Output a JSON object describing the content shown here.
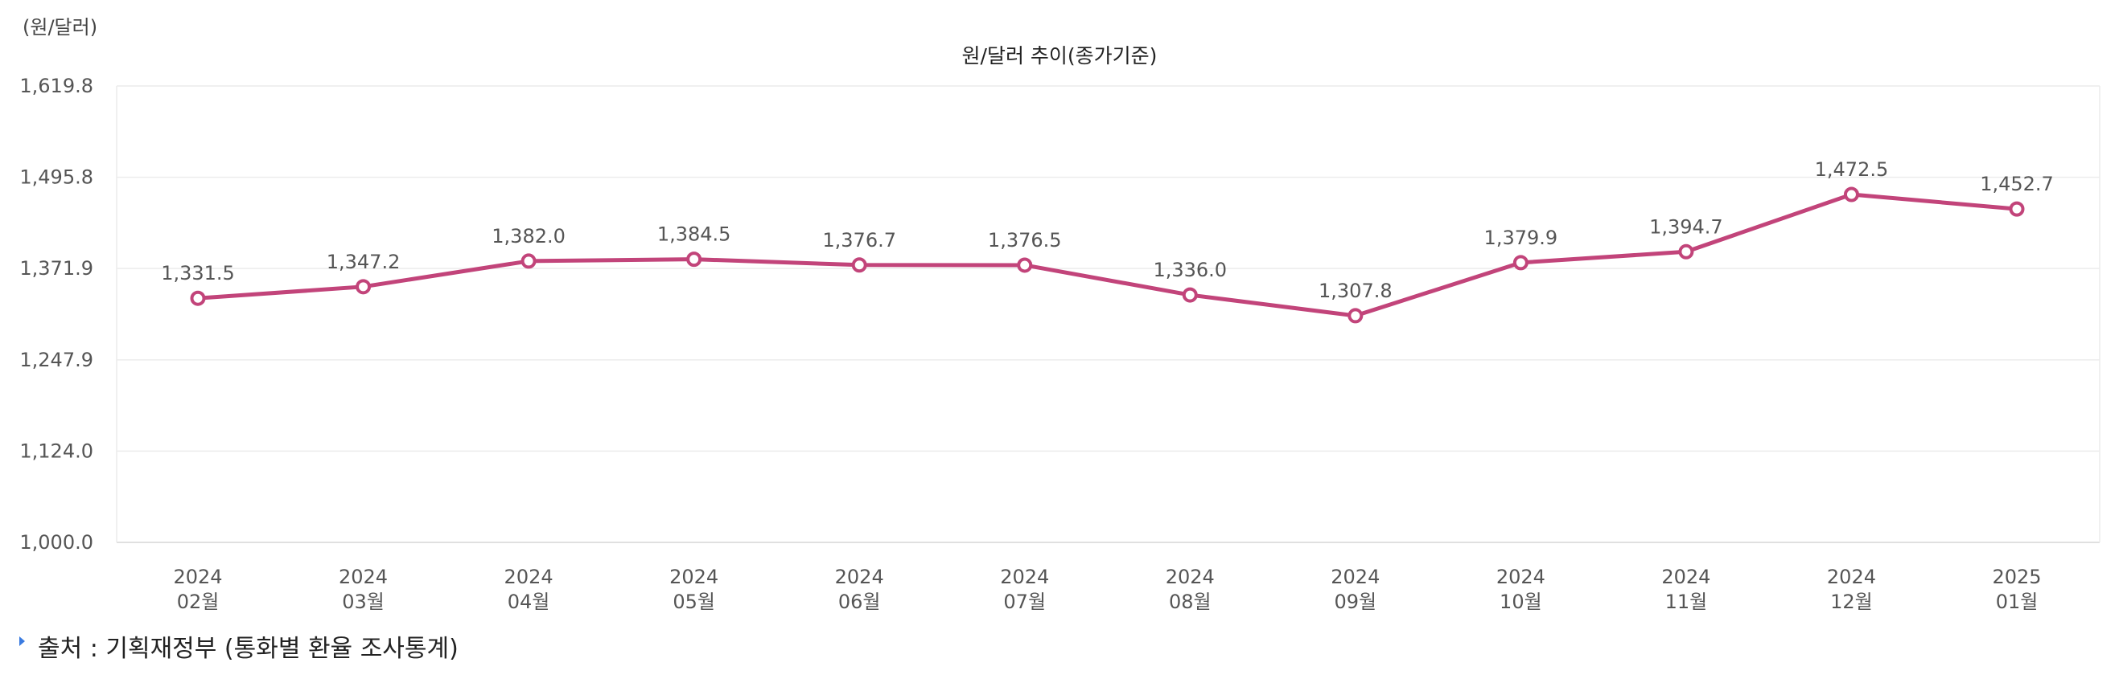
{
  "chart_data": {
    "type": "line",
    "title": "원/달러 추이(종가기준)",
    "unit_label": "(원/달러)",
    "ylim": [
      1000.0,
      1619.8
    ],
    "yticks": [
      "1,000.0",
      "1,124.0",
      "1,247.9",
      "1,371.9",
      "1,495.8",
      "1,619.8"
    ],
    "ytick_values": [
      1000.0,
      1124.0,
      1247.9,
      1371.9,
      1495.8,
      1619.8
    ],
    "categories": [
      {
        "year": "2024",
        "month": "02월"
      },
      {
        "year": "2024",
        "month": "03월"
      },
      {
        "year": "2024",
        "month": "04월"
      },
      {
        "year": "2024",
        "month": "05월"
      },
      {
        "year": "2024",
        "month": "06월"
      },
      {
        "year": "2024",
        "month": "07월"
      },
      {
        "year": "2024",
        "month": "08월"
      },
      {
        "year": "2024",
        "month": "09월"
      },
      {
        "year": "2024",
        "month": "10월"
      },
      {
        "year": "2024",
        "month": "11월"
      },
      {
        "year": "2024",
        "month": "12월"
      },
      {
        "year": "2025",
        "month": "01월"
      }
    ],
    "values": [
      1331.5,
      1347.2,
      1382.0,
      1384.5,
      1376.7,
      1376.5,
      1336.0,
      1307.8,
      1379.9,
      1394.7,
      1472.5,
      1452.7
    ],
    "value_labels": [
      "1,331.5",
      "1,347.2",
      "1,382.0",
      "1,384.5",
      "1,376.7",
      "1,376.5",
      "1,336.0",
      "1,307.8",
      "1,379.9",
      "1,394.7",
      "1,472.5",
      "1,452.7"
    ],
    "grid": true,
    "line_color": "#c2447a",
    "grid_color": "#ececec"
  },
  "source": {
    "text": "출처 : 기획재정부 (통화별 환율 조사통계)",
    "bullet_color": "#3a7be0"
  }
}
